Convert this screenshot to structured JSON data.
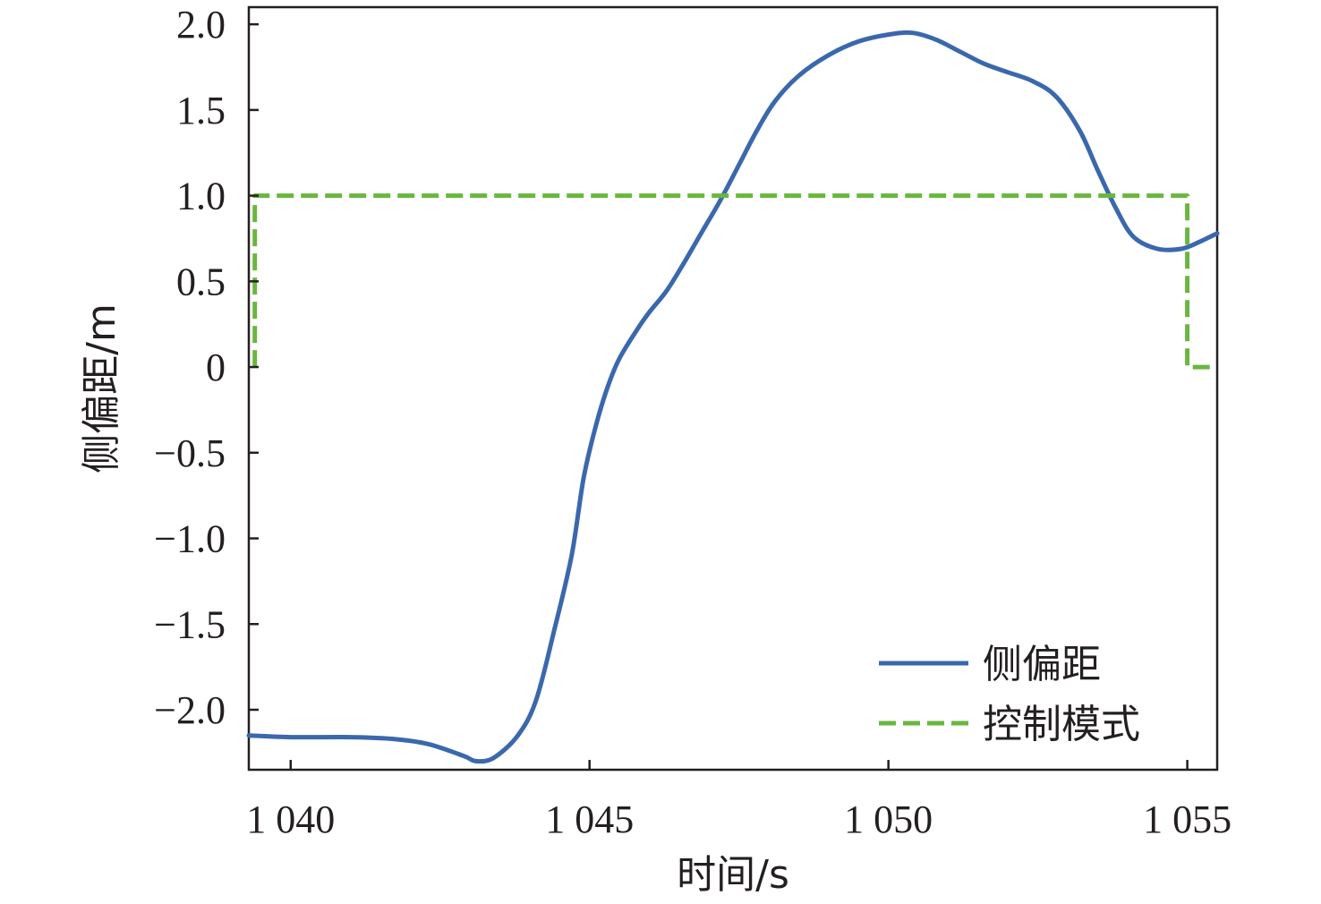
{
  "chart_data": {
    "type": "line",
    "xlabel": "时间/s",
    "ylabel": "侧偏距/m",
    "xlim": [
      1039.3,
      1055.5
    ],
    "ylim": [
      -2.35,
      2.1
    ],
    "x_ticks": [
      {
        "value": 1040,
        "label": "1 040"
      },
      {
        "value": 1045,
        "label": "1 045"
      },
      {
        "value": 1050,
        "label": "1 050"
      },
      {
        "value": 1055,
        "label": "1 055"
      }
    ],
    "y_ticks": [
      {
        "value": 2.0,
        "label": "2.0"
      },
      {
        "value": 1.5,
        "label": "1.5"
      },
      {
        "value": 1.0,
        "label": "1.0"
      },
      {
        "value": 0.5,
        "label": "0.5"
      },
      {
        "value": 0,
        "label": "0"
      },
      {
        "value": -0.5,
        "label": "−0.5"
      },
      {
        "value": -1.0,
        "label": "−1.0"
      },
      {
        "value": -1.5,
        "label": "−1.5"
      },
      {
        "value": -2.0,
        "label": "−2.0"
      }
    ],
    "grid": false,
    "legend_position": "bottom-right",
    "series": [
      {
        "name": "侧偏距",
        "color": "#3a68ad",
        "style": "solid",
        "x": [
          1039.3,
          1040.0,
          1041.0,
          1041.7,
          1042.3,
          1042.9,
          1043.1,
          1043.4,
          1043.8,
          1044.1,
          1044.4,
          1044.7,
          1044.9,
          1045.1,
          1045.3,
          1045.5,
          1045.8,
          1046.0,
          1046.3,
          1046.6,
          1046.9,
          1047.2,
          1047.5,
          1047.8,
          1048.1,
          1048.5,
          1049.0,
          1049.5,
          1050.0,
          1050.4,
          1050.8,
          1051.2,
          1051.6,
          1052.0,
          1052.4,
          1052.8,
          1053.2,
          1053.5,
          1053.8,
          1054.1,
          1054.5,
          1054.9,
          1055.2,
          1055.5
        ],
        "y": [
          -2.15,
          -2.16,
          -2.16,
          -2.17,
          -2.2,
          -2.27,
          -2.3,
          -2.28,
          -2.15,
          -1.95,
          -1.55,
          -1.1,
          -0.65,
          -0.35,
          -0.12,
          0.05,
          0.22,
          0.32,
          0.45,
          0.62,
          0.8,
          0.98,
          1.18,
          1.38,
          1.55,
          1.7,
          1.82,
          1.9,
          1.94,
          1.95,
          1.91,
          1.84,
          1.77,
          1.72,
          1.67,
          1.58,
          1.38,
          1.15,
          0.93,
          0.76,
          0.69,
          0.69,
          0.73,
          0.78
        ]
      },
      {
        "name": "控制模式",
        "color": "#6ab640",
        "style": "dashed",
        "x": [
          1039.4,
          1039.4,
          1055.0,
          1055.0,
          1055.4
        ],
        "y": [
          0,
          1,
          1,
          0,
          0
        ]
      }
    ]
  }
}
